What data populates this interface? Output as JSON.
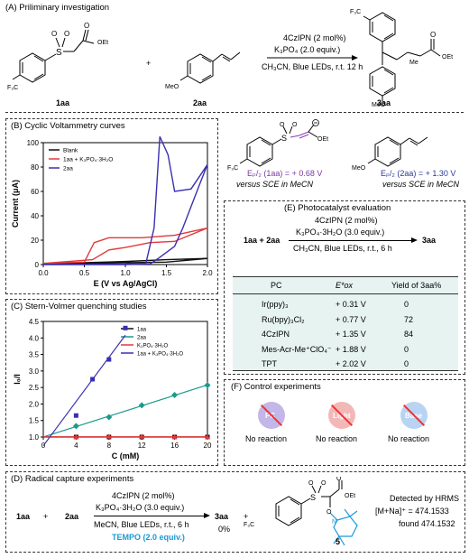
{
  "sectionA": {
    "title": "(A) Priliminary investigation",
    "reagent1": "1aa",
    "reagent2": "2aa",
    "product": "3aa",
    "cond_top": "4CzIPN (2 mol%)",
    "cond_mid": "K₃PO₄ (2.0 equiv.)",
    "cond_bot": "CH₃CN, Blue LEDs, r.t. 12 h",
    "plus": "+",
    "lbl_f3c": "F₃C",
    "lbl_meo": "MeO",
    "lbl_oet": "OEt",
    "lbl_me": "Me"
  },
  "sectionB": {
    "title": "(B) Cyclic Voltammetry curves",
    "legend": [
      "Blank",
      "1aa + K₃PO₄·3H₂O",
      "2aa"
    ]
  },
  "potentials": {
    "left": "Eₚ/₂ (1aa) = + 0.68 V",
    "left2": "versus SCE in MeCN",
    "right": "Eₚ/₂ (2aa) = + 1.30 V",
    "right2": "versus SCE in MeCN"
  },
  "sectionC": {
    "title": "(C) Stern-Volmer quenching studies",
    "legend": [
      "1aa",
      "2aa",
      "K₃PO₄·3H₂O",
      "1aa + K₃PO₄·3H₂O"
    ]
  },
  "sectionE": {
    "title": "(E) Photocatalyst evaluation",
    "cond_top": "4CzIPN (2 mol%)",
    "cond_mid": "K₃PO₄·3H₂O (3.0 equiv.)",
    "cond_bot": "CH₃CN, Blue LEDs, r.t., 6 h",
    "eq_left": "1aa  +  2aa",
    "eq_right": "3aa",
    "headers": [
      "PC",
      "E*ox",
      "Yield of 3aa%"
    ],
    "rows": [
      [
        "Ir(ppy)₃",
        "+ 0.31 V",
        "0"
      ],
      [
        "Ru(bpy)₃Cl₂",
        "+ 0.77 V",
        "72"
      ],
      [
        "4CzIPN",
        "+ 1.35 V",
        "84"
      ],
      [
        "Mes-Acr-Me⁺ClO₄⁻",
        "+ 1.88 V",
        "0"
      ],
      [
        "TPT",
        "+ 2.02 V",
        "0"
      ]
    ]
  },
  "sectionF": {
    "title": "(F) Control experiments",
    "items": [
      {
        "label": "PC",
        "result": "No reaction"
      },
      {
        "label": "Light",
        "result": "No reaction"
      },
      {
        "label": "Base",
        "result": "No reaction"
      }
    ]
  },
  "sectionD": {
    "title": "(D) Radical capture experiments",
    "eq_left": "1aa",
    "plus": "+",
    "eq_mid": "2aa",
    "cond_top": "4CzIPN (2 mol%)",
    "cond_mid": "K₃PO₄·3H₂O (3.0 equiv.)",
    "cond_bot": "MeCN, Blue LEDs, r.t., 6 h",
    "tempo": "TEMPO (2.0 equiv.)",
    "product": "3aa",
    "yield": "0%",
    "compound": "5",
    "hrms1": "Detected by HRMS",
    "hrms2": "[M+Na]⁺ = 474.1533",
    "hrms3": "found 474.1532",
    "lbl_f3c": "F₃C",
    "lbl_oet": "OEt"
  },
  "chart_data": [
    {
      "type": "line",
      "title": "Cyclic Voltammetry curves",
      "xlabel": "E (V vs Ag/AgCl)",
      "ylabel": "Current (μA)",
      "xlim": [
        0.0,
        2.0
      ],
      "ylim": [
        0,
        100
      ],
      "xticks": [
        "0.0",
        "0.5",
        "1.0",
        "1.5",
        "2.0"
      ],
      "yticks": [
        "0",
        "20",
        "40",
        "60",
        "80",
        "100"
      ],
      "series": [
        {
          "name": "Blank",
          "color": "#111111",
          "x": [
            0.0,
            0.5,
            1.0,
            1.5,
            2.0,
            1.5,
            1.0,
            0.5,
            0.0
          ],
          "y": [
            0.5,
            1,
            1.5,
            2,
            5,
            4,
            2.5,
            1.5,
            0.5
          ]
        },
        {
          "name": "1aa + K₃PO₄·3H₂O",
          "color": "#e03a3a",
          "x": [
            0.0,
            0.5,
            0.62,
            0.8,
            1.2,
            1.6,
            2.0,
            1.6,
            1.3,
            1.0,
            0.8,
            0.6,
            0.0
          ],
          "y": [
            1,
            2,
            18,
            22,
            22,
            24,
            30,
            19,
            18,
            14,
            12,
            4,
            1
          ]
        },
        {
          "name": "2aa",
          "color": "#3a2fb0",
          "x": [
            0.0,
            1.0,
            1.25,
            1.35,
            1.42,
            1.52,
            1.6,
            1.8,
            2.0,
            1.9,
            1.7,
            1.6,
            1.4,
            1.3,
            1.0,
            0.0
          ],
          "y": [
            0,
            0.5,
            1,
            30,
            105,
            90,
            60,
            62,
            82,
            65,
            30,
            15,
            5,
            0.5,
            0,
            0
          ]
        }
      ]
    },
    {
      "type": "scatter",
      "title": "Stern-Volmer quenching studies",
      "xlabel": "C (mM)",
      "ylabel": "I₀/I",
      "xlim": [
        0,
        20
      ],
      "ylim": [
        1.0,
        4.5
      ],
      "xticks": [
        "0",
        "4",
        "8",
        "12",
        "16",
        "20"
      ],
      "yticks": [
        "1.0",
        "1.5",
        "2.0",
        "2.5",
        "3.0",
        "3.5",
        "4.0",
        "4.5"
      ],
      "series": [
        {
          "name": "1aa",
          "color": "#111111",
          "marker": "square",
          "x": [
            4,
            8,
            12,
            16,
            20
          ],
          "y": [
            1.0,
            1.0,
            1.0,
            1.0,
            1.0
          ]
        },
        {
          "name": "2aa",
          "color": "#1a9a8a",
          "marker": "diamond",
          "x": [
            4,
            8,
            12,
            16,
            20
          ],
          "y": [
            1.33,
            1.6,
            1.96,
            2.27,
            2.57
          ]
        },
        {
          "name": "K₃PO₄·3H₂O",
          "color": "#e03a3a",
          "marker": "triangle",
          "x": [
            4,
            8,
            12,
            16,
            20
          ],
          "y": [
            1.0,
            1.02,
            1.02,
            1.0,
            1.0
          ]
        },
        {
          "name": "1aa + K₃PO₄·3H₂O",
          "color": "#3a2fb0",
          "marker": "square",
          "x": [
            4,
            6,
            8,
            10
          ],
          "y": [
            1.65,
            2.75,
            3.35,
            4.3
          ]
        }
      ]
    }
  ]
}
